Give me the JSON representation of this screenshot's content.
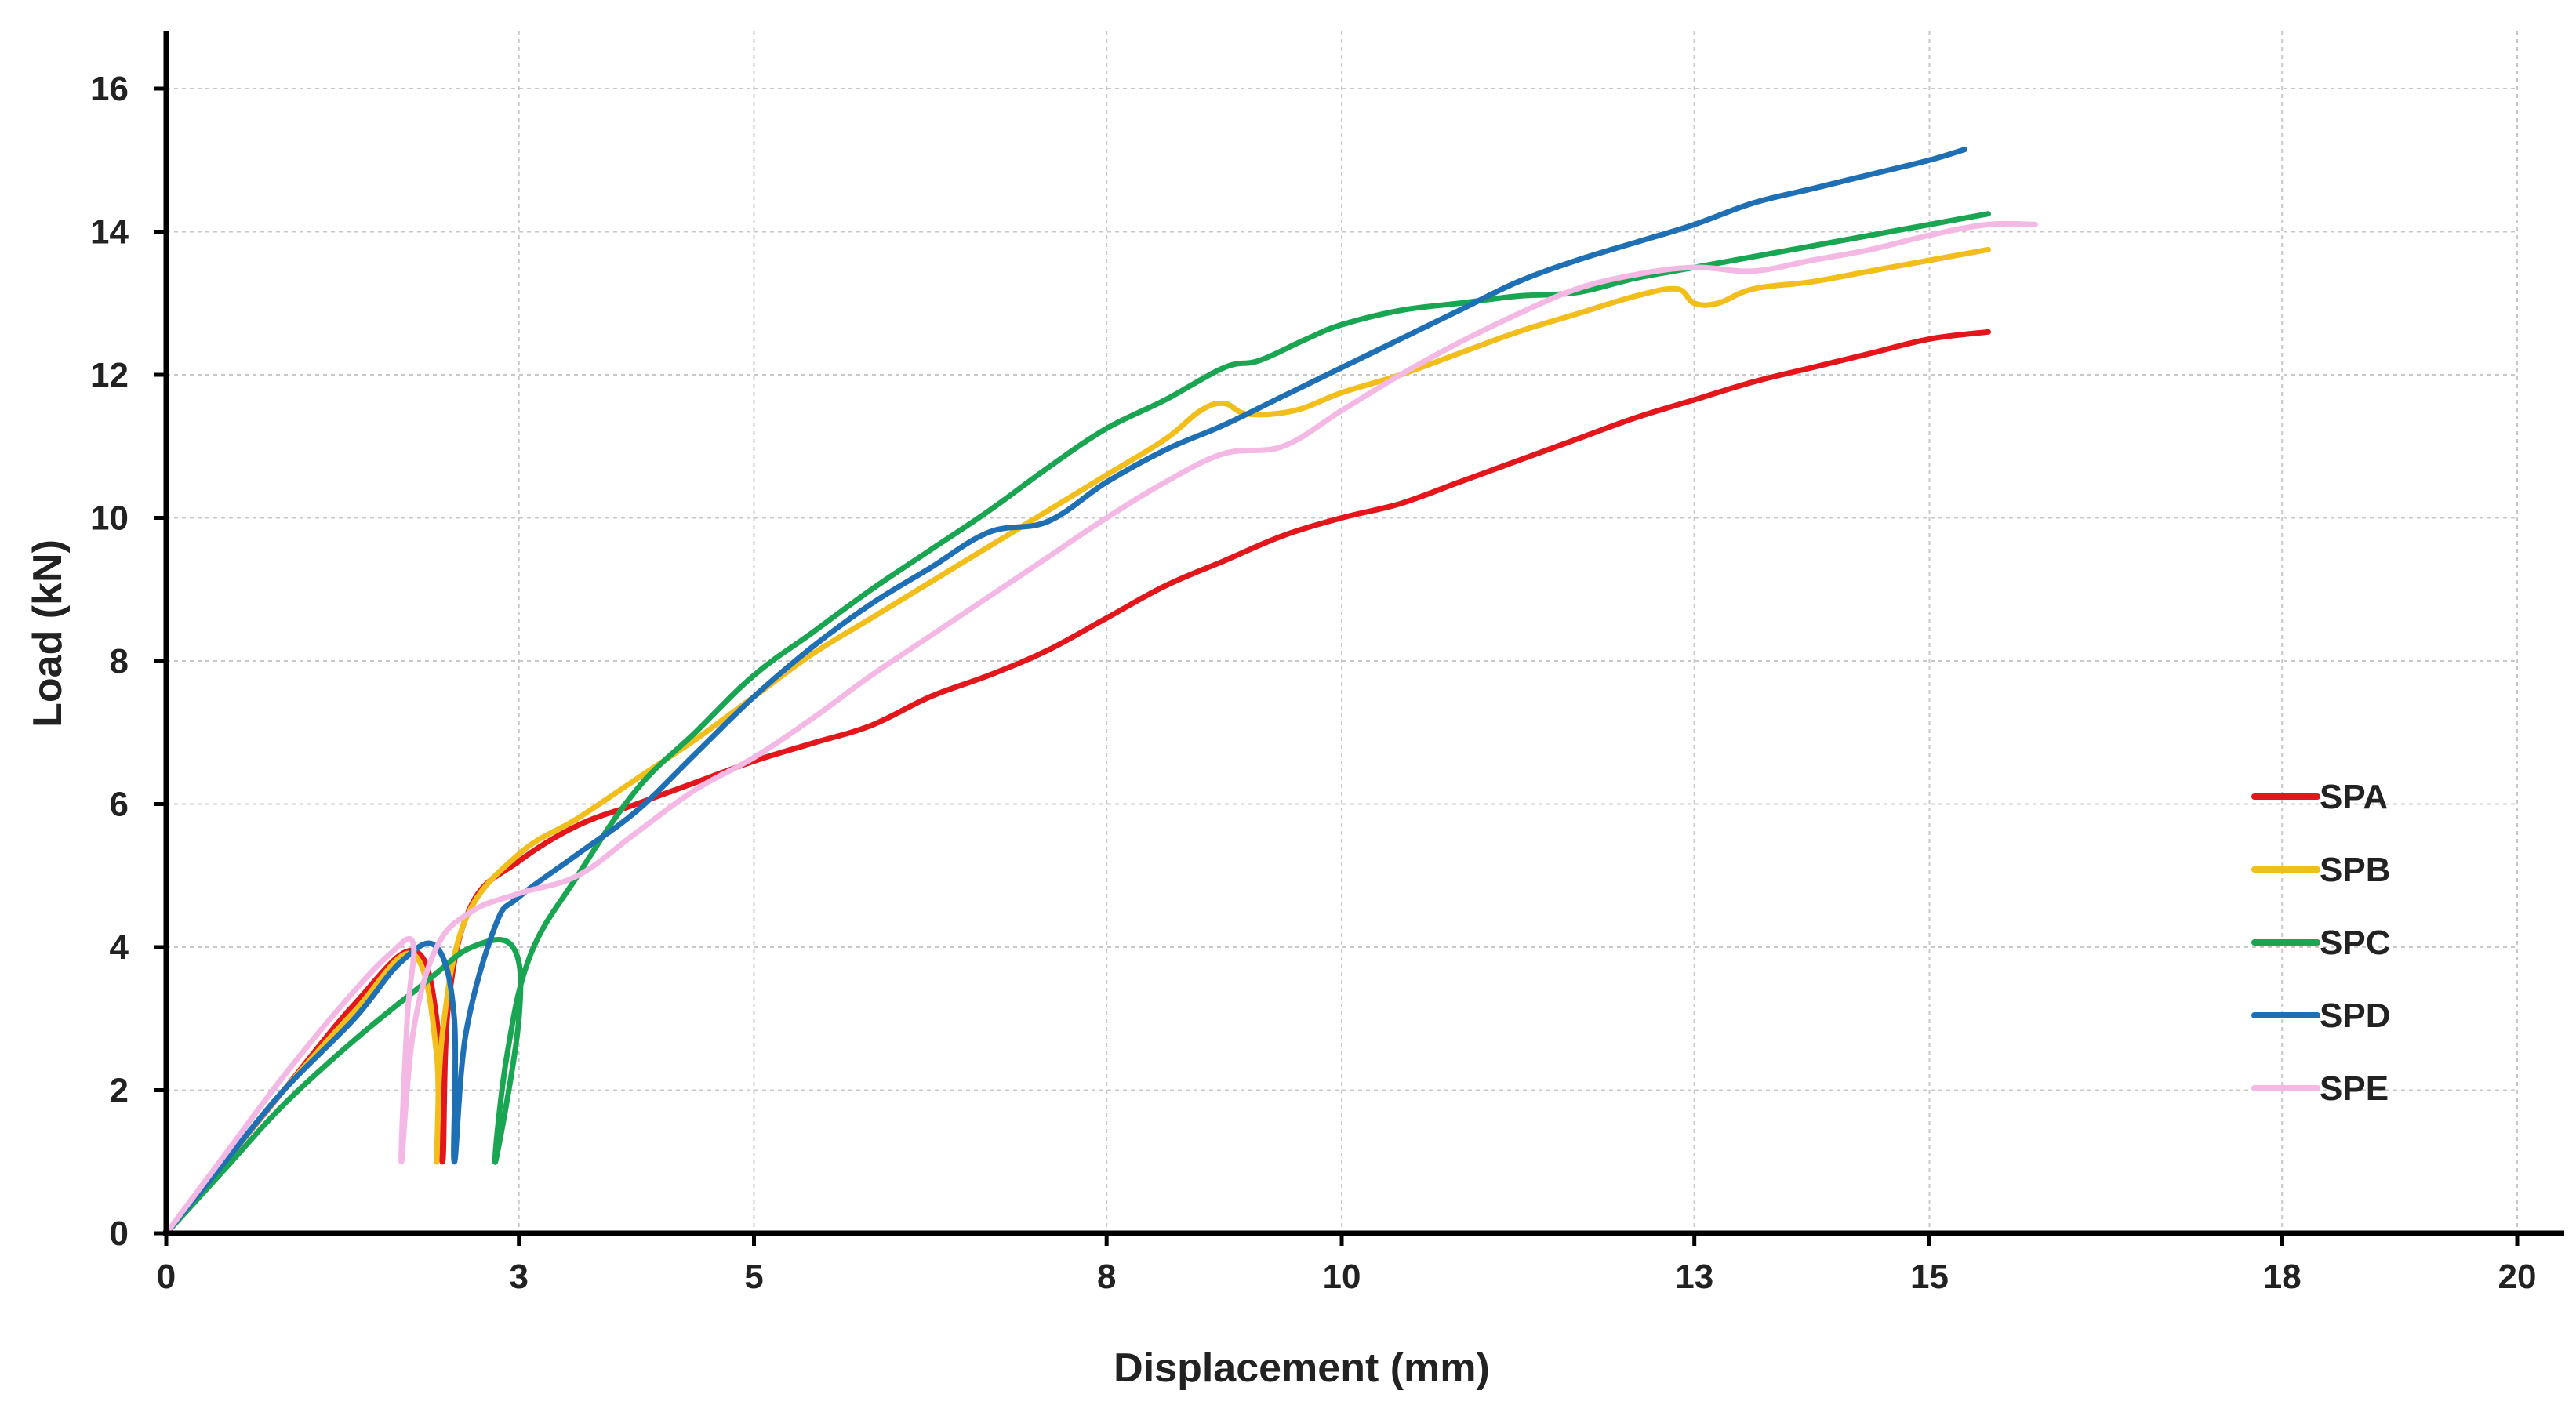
{
  "chart_data": {
    "type": "line",
    "title": "",
    "xlabel": "Displacement (mm)",
    "ylabel": "Load (kN)",
    "xlim": [
      0,
      20
    ],
    "ylim": [
      0,
      16.5
    ],
    "x_ticks": [
      0,
      3,
      5,
      8,
      10,
      13,
      15,
      18,
      20
    ],
    "y_ticks": [
      0,
      2,
      4,
      6,
      8,
      10,
      12,
      14,
      16
    ],
    "grid": true,
    "legend_position": "right-middle",
    "series": [
      {
        "name": "SPA",
        "color": "#e3161c",
        "points": [
          [
            0,
            0
          ],
          [
            0.5,
            1.0
          ],
          [
            1.0,
            2.0
          ],
          [
            1.6,
            3.2
          ],
          [
            2.1,
            3.95
          ],
          [
            2.3,
            3.0
          ],
          [
            2.35,
            1.0
          ],
          [
            2.4,
            3.2
          ],
          [
            2.6,
            4.6
          ],
          [
            3.0,
            5.2
          ],
          [
            3.5,
            5.7
          ],
          [
            4.0,
            6.0
          ],
          [
            4.5,
            6.3
          ],
          [
            5.0,
            6.6
          ],
          [
            5.5,
            6.85
          ],
          [
            6.0,
            7.1
          ],
          [
            6.5,
            7.5
          ],
          [
            7.0,
            7.8
          ],
          [
            7.5,
            8.15
          ],
          [
            8.0,
            8.6
          ],
          [
            8.5,
            9.05
          ],
          [
            9.0,
            9.4
          ],
          [
            9.5,
            9.75
          ],
          [
            10.0,
            10.0
          ],
          [
            10.5,
            10.2
          ],
          [
            11.0,
            10.5
          ],
          [
            11.5,
            10.8
          ],
          [
            12.0,
            11.1
          ],
          [
            12.5,
            11.4
          ],
          [
            13.0,
            11.65
          ],
          [
            13.5,
            11.9
          ],
          [
            14.0,
            12.1
          ],
          [
            14.5,
            12.3
          ],
          [
            15.0,
            12.5
          ],
          [
            15.5,
            12.6
          ]
        ]
      },
      {
        "name": "SPB",
        "color": "#f2be1c",
        "points": [
          [
            0,
            0
          ],
          [
            0.5,
            1.0
          ],
          [
            1.0,
            2.0
          ],
          [
            1.6,
            3.1
          ],
          [
            2.1,
            3.9
          ],
          [
            2.3,
            2.5
          ],
          [
            2.3,
            1.0
          ],
          [
            2.35,
            2.8
          ],
          [
            2.55,
            4.4
          ],
          [
            3.0,
            5.3
          ],
          [
            3.5,
            5.8
          ],
          [
            4.0,
            6.35
          ],
          [
            4.5,
            6.9
          ],
          [
            5.0,
            7.5
          ],
          [
            5.5,
            8.1
          ],
          [
            6.0,
            8.6
          ],
          [
            6.5,
            9.1
          ],
          [
            7.0,
            9.6
          ],
          [
            7.5,
            10.1
          ],
          [
            8.0,
            10.6
          ],
          [
            8.5,
            11.1
          ],
          [
            8.8,
            11.5
          ],
          [
            9.0,
            11.6
          ],
          [
            9.2,
            11.45
          ],
          [
            9.6,
            11.5
          ],
          [
            10.0,
            11.75
          ],
          [
            10.5,
            12.0
          ],
          [
            11.0,
            12.3
          ],
          [
            11.5,
            12.6
          ],
          [
            12.0,
            12.85
          ],
          [
            12.5,
            13.1
          ],
          [
            12.85,
            13.2
          ],
          [
            13.0,
            13.0
          ],
          [
            13.2,
            13.0
          ],
          [
            13.5,
            13.2
          ],
          [
            14.0,
            13.3
          ],
          [
            14.5,
            13.45
          ],
          [
            15.0,
            13.6
          ],
          [
            15.5,
            13.75
          ]
        ]
      },
      {
        "name": "SPC",
        "color": "#1aa553",
        "points": [
          [
            0,
            0
          ],
          [
            0.5,
            0.9
          ],
          [
            1.0,
            1.8
          ],
          [
            1.6,
            2.7
          ],
          [
            2.2,
            3.5
          ],
          [
            2.6,
            4.0
          ],
          [
            2.95,
            4.0
          ],
          [
            3.0,
            3.0
          ],
          [
            2.8,
            1.0
          ],
          [
            2.9,
            2.5
          ],
          [
            3.1,
            3.9
          ],
          [
            3.5,
            5.0
          ],
          [
            4.0,
            6.2
          ],
          [
            4.5,
            7.0
          ],
          [
            5.0,
            7.8
          ],
          [
            5.5,
            8.4
          ],
          [
            6.0,
            9.0
          ],
          [
            6.5,
            9.55
          ],
          [
            7.0,
            10.1
          ],
          [
            7.5,
            10.7
          ],
          [
            8.0,
            11.25
          ],
          [
            8.5,
            11.65
          ],
          [
            9.0,
            12.1
          ],
          [
            9.3,
            12.2
          ],
          [
            9.7,
            12.5
          ],
          [
            10.0,
            12.7
          ],
          [
            10.5,
            12.9
          ],
          [
            11.0,
            13.0
          ],
          [
            11.5,
            13.1
          ],
          [
            12.0,
            13.15
          ],
          [
            12.5,
            13.35
          ],
          [
            13.0,
            13.5
          ],
          [
            13.5,
            13.65
          ],
          [
            14.0,
            13.8
          ],
          [
            14.5,
            13.95
          ],
          [
            15.0,
            14.1
          ],
          [
            15.5,
            14.25
          ]
        ]
      },
      {
        "name": "SPD",
        "color": "#1e6fb3",
        "points": [
          [
            0,
            0
          ],
          [
            0.5,
            1.0
          ],
          [
            1.0,
            2.0
          ],
          [
            1.6,
            3.0
          ],
          [
            2.0,
            3.8
          ],
          [
            2.3,
            4.0
          ],
          [
            2.45,
            3.0
          ],
          [
            2.45,
            1.0
          ],
          [
            2.55,
            2.8
          ],
          [
            2.8,
            4.3
          ],
          [
            3.0,
            4.7
          ],
          [
            3.5,
            5.3
          ],
          [
            4.0,
            5.9
          ],
          [
            4.5,
            6.7
          ],
          [
            5.0,
            7.5
          ],
          [
            5.5,
            8.2
          ],
          [
            6.0,
            8.8
          ],
          [
            6.5,
            9.3
          ],
          [
            7.0,
            9.8
          ],
          [
            7.5,
            9.95
          ],
          [
            8.0,
            10.5
          ],
          [
            8.5,
            10.95
          ],
          [
            9.0,
            11.3
          ],
          [
            9.5,
            11.7
          ],
          [
            10.0,
            12.1
          ],
          [
            10.5,
            12.5
          ],
          [
            11.0,
            12.9
          ],
          [
            11.5,
            13.3
          ],
          [
            12.0,
            13.6
          ],
          [
            12.5,
            13.85
          ],
          [
            13.0,
            14.1
          ],
          [
            13.5,
            14.4
          ],
          [
            14.0,
            14.6
          ],
          [
            14.5,
            14.8
          ],
          [
            15.0,
            15.0
          ],
          [
            15.3,
            15.15
          ]
        ]
      },
      {
        "name": "SPE",
        "color": "#f4b8e4",
        "points": [
          [
            0,
            0
          ],
          [
            0.5,
            1.1
          ],
          [
            1.0,
            2.2
          ],
          [
            1.5,
            3.2
          ],
          [
            1.9,
            3.9
          ],
          [
            2.1,
            4.05
          ],
          [
            2.05,
            3.0
          ],
          [
            2.0,
            1.0
          ],
          [
            2.1,
            2.8
          ],
          [
            2.3,
            4.0
          ],
          [
            2.6,
            4.5
          ],
          [
            3.0,
            4.75
          ],
          [
            3.5,
            5.0
          ],
          [
            4.0,
            5.6
          ],
          [
            4.5,
            6.2
          ],
          [
            5.0,
            6.65
          ],
          [
            5.5,
            7.2
          ],
          [
            6.0,
            7.8
          ],
          [
            6.5,
            8.35
          ],
          [
            7.0,
            8.9
          ],
          [
            7.5,
            9.45
          ],
          [
            8.0,
            10.0
          ],
          [
            8.5,
            10.5
          ],
          [
            9.0,
            10.9
          ],
          [
            9.5,
            11.0
          ],
          [
            10.0,
            11.5
          ],
          [
            10.5,
            12.0
          ],
          [
            11.0,
            12.45
          ],
          [
            11.5,
            12.85
          ],
          [
            12.0,
            13.2
          ],
          [
            12.5,
            13.4
          ],
          [
            13.0,
            13.5
          ],
          [
            13.5,
            13.45
          ],
          [
            14.0,
            13.6
          ],
          [
            14.5,
            13.75
          ],
          [
            15.0,
            13.95
          ],
          [
            15.5,
            14.1
          ],
          [
            15.9,
            14.1
          ]
        ]
      }
    ]
  }
}
